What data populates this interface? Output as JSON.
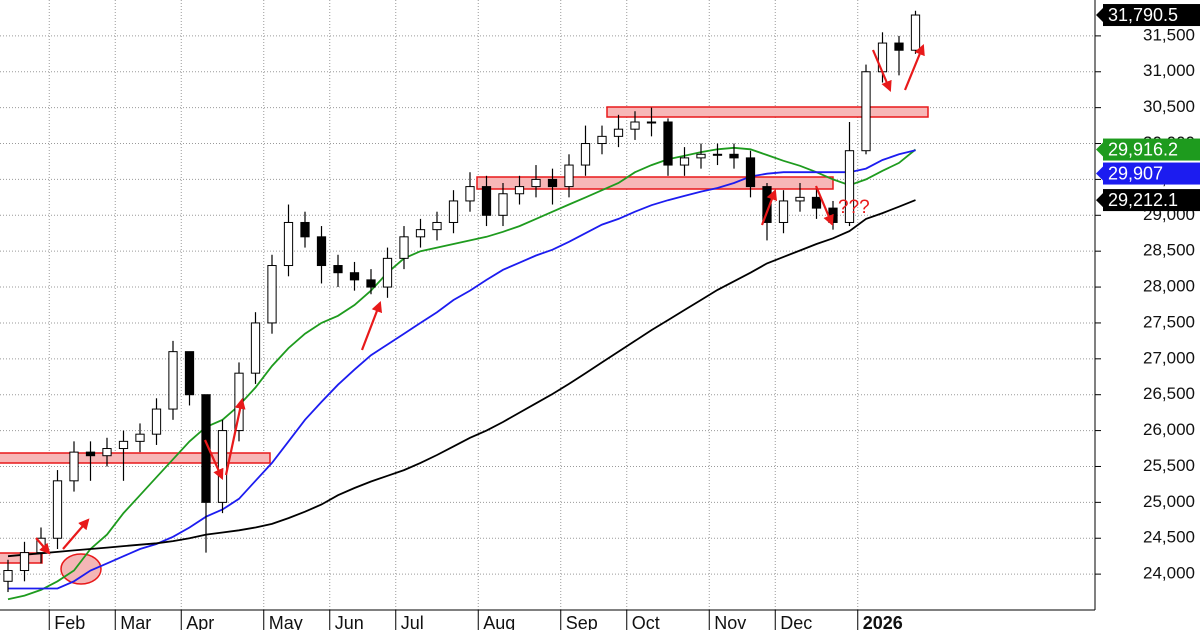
{
  "chart_data": {
    "type": "candlestick",
    "color": "#000000",
    "up_fill": "#ffffff",
    "grid": true,
    "categories": [
      null,
      null,
      null,
      "Feb",
      null,
      null,
      null,
      "Mar",
      null,
      null,
      null,
      "Apr",
      null,
      null,
      null,
      null,
      "May",
      null,
      null,
      null,
      "Jun",
      null,
      null,
      null,
      "Jul",
      null,
      null,
      null,
      null,
      "Aug",
      null,
      null,
      null,
      null,
      "Sep",
      null,
      null,
      null,
      "Oct",
      null,
      null,
      null,
      null,
      "Nov",
      null,
      null,
      null,
      "Dec",
      null,
      null,
      null,
      null,
      "2026",
      null,
      null,
      null
    ],
    "open": [
      23900,
      24050,
      24300,
      24500,
      25300,
      25700,
      25650,
      25750,
      25850,
      25950,
      26300,
      27100,
      26500,
      25000,
      26000,
      26800,
      27500,
      28300,
      28900,
      28700,
      28300,
      28200,
      28100,
      28000,
      28400,
      28700,
      28800,
      28900,
      29200,
      29400,
      29000,
      29300,
      29400,
      29500,
      29400,
      29700,
      30000,
      30100,
      30200,
      30300,
      30300,
      29700,
      29800,
      29850,
      29850,
      29800,
      29400,
      28900,
      29200,
      29250,
      29100,
      28900,
      29900,
      31000,
      31400,
      31300
    ],
    "high": [
      24200,
      24450,
      24650,
      25450,
      25850,
      25850,
      25900,
      26000,
      26100,
      26450,
      27250,
      27100,
      26500,
      26150,
      26950,
      27650,
      28450,
      29150,
      29050,
      28850,
      28450,
      28350,
      28250,
      28550,
      28850,
      28950,
      29050,
      29350,
      29600,
      29550,
      29450,
      29550,
      29700,
      29650,
      29850,
      30250,
      30250,
      30400,
      30450,
      30500,
      30350,
      29950,
      30000,
      30000,
      30000,
      29900,
      29450,
      29350,
      29450,
      29400,
      29200,
      30300,
      31100,
      31550,
      31500,
      31850
    ],
    "low": [
      23750,
      23900,
      24150,
      24350,
      25150,
      25300,
      25500,
      25300,
      25700,
      25800,
      26150,
      26350,
      24300,
      24850,
      25850,
      26650,
      27350,
      28150,
      28550,
      28050,
      28000,
      27950,
      27900,
      27850,
      28250,
      28550,
      28650,
      28750,
      29050,
      28850,
      28850,
      29150,
      29250,
      29150,
      29250,
      29550,
      29850,
      29950,
      30050,
      30100,
      29550,
      29550,
      29650,
      29700,
      29650,
      29250,
      28650,
      28750,
      29050,
      28950,
      28800,
      28850,
      29850,
      30850,
      30950,
      31250
    ],
    "values": [
      24050,
      24300,
      24500,
      25300,
      25700,
      25650,
      25750,
      25850,
      25950,
      26300,
      27100,
      26500,
      25000,
      26000,
      26800,
      27500,
      28300,
      28900,
      28700,
      28300,
      28200,
      28100,
      28000,
      28400,
      28700,
      28800,
      28900,
      29200,
      29400,
      29000,
      29300,
      29400,
      29500,
      29400,
      29700,
      30000,
      30100,
      30200,
      30300,
      30300,
      29700,
      29800,
      29850,
      29850,
      29800,
      29400,
      28900,
      29200,
      29250,
      29100,
      28900,
      29900,
      31000,
      31400,
      31300,
      31790.5
    ],
    "value_labels": [
      null,
      null,
      null,
      null,
      null,
      null,
      null,
      null,
      null,
      null,
      null,
      null,
      null,
      null,
      null,
      null,
      null,
      null,
      null,
      null,
      null,
      null,
      null,
      null,
      null,
      null,
      null,
      null,
      null,
      null,
      null,
      null,
      null,
      null,
      null,
      null,
      null,
      null,
      null,
      null,
      null,
      null,
      null,
      null,
      null,
      null,
      null,
      null,
      null,
      null,
      null,
      null,
      null,
      null,
      null,
      "31,790.5"
    ],
    "series": [
      {
        "color": "#1e9b1e",
        "values": [
          23650,
          23700,
          23780,
          23900,
          24050,
          24350,
          24550,
          24850,
          25100,
          25350,
          25600,
          25850,
          26050,
          26150,
          26350,
          26600,
          26900,
          27150,
          27350,
          27500,
          27600,
          27750,
          27950,
          28200,
          28400,
          28500,
          28550,
          28600,
          28650,
          28700,
          28770,
          28850,
          28950,
          29050,
          29150,
          29250,
          29350,
          29450,
          29600,
          29700,
          29780,
          29830,
          29880,
          29920,
          29940,
          29920,
          29840,
          29760,
          29690,
          29600,
          29500,
          29420,
          29500,
          29620,
          29730,
          29916.2
        ],
        "value_labels": [
          null,
          null,
          null,
          null,
          null,
          null,
          null,
          null,
          null,
          null,
          null,
          null,
          null,
          null,
          null,
          null,
          null,
          null,
          null,
          null,
          null,
          null,
          null,
          null,
          null,
          null,
          null,
          null,
          null,
          null,
          null,
          null,
          null,
          null,
          null,
          null,
          null,
          null,
          null,
          null,
          null,
          null,
          null,
          null,
          null,
          null,
          null,
          null,
          null,
          null,
          null,
          null,
          null,
          null,
          null,
          "29,916.2"
        ]
      },
      {
        "color": "#1c1cf0",
        "values": [
          23800,
          23800,
          23800,
          23800,
          23900,
          24050,
          24150,
          24250,
          24350,
          24420,
          24520,
          24650,
          24800,
          24900,
          25050,
          25300,
          25550,
          25850,
          26150,
          26400,
          26640,
          26850,
          27050,
          27200,
          27350,
          27500,
          27650,
          27820,
          27950,
          28100,
          28240,
          28340,
          28440,
          28520,
          28630,
          28750,
          28870,
          28950,
          29050,
          29140,
          29210,
          29270,
          29330,
          29380,
          29450,
          29540,
          29580,
          29600,
          29600,
          29600,
          29600,
          29600,
          29650,
          29770,
          29850,
          29907
        ],
        "value_labels": [
          null,
          null,
          null,
          null,
          null,
          null,
          null,
          null,
          null,
          null,
          null,
          null,
          null,
          null,
          null,
          null,
          null,
          null,
          null,
          null,
          null,
          null,
          null,
          null,
          null,
          null,
          null,
          null,
          null,
          null,
          null,
          null,
          null,
          null,
          null,
          null,
          null,
          null,
          null,
          null,
          null,
          null,
          null,
          null,
          null,
          null,
          null,
          null,
          null,
          null,
          null,
          null,
          null,
          null,
          null,
          "29,907"
        ]
      },
      {
        "color": "#000000",
        "values": [
          24250,
          24270,
          24290,
          24310,
          24330,
          24350,
          24370,
          24390,
          24410,
          24430,
          24460,
          24500,
          24550,
          24580,
          24610,
          24650,
          24700,
          24780,
          24870,
          24970,
          25100,
          25200,
          25290,
          25370,
          25450,
          25550,
          25660,
          25780,
          25900,
          26000,
          26120,
          26250,
          26380,
          26510,
          26650,
          26800,
          26950,
          27100,
          27250,
          27400,
          27540,
          27680,
          27820,
          27960,
          28080,
          28200,
          28330,
          28420,
          28510,
          28600,
          28680,
          28780,
          28950,
          29030,
          29120,
          29212.1
        ],
        "value_labels": [
          null,
          null,
          null,
          null,
          null,
          null,
          null,
          null,
          null,
          null,
          null,
          null,
          null,
          null,
          null,
          null,
          null,
          null,
          null,
          null,
          null,
          null,
          null,
          null,
          null,
          null,
          null,
          null,
          null,
          null,
          null,
          null,
          null,
          null,
          null,
          null,
          null,
          null,
          null,
          null,
          null,
          null,
          null,
          null,
          null,
          null,
          null,
          null,
          null,
          null,
          null,
          null,
          null,
          null,
          null,
          "29,212.1"
        ]
      }
    ],
    "ylim": [
      23500,
      32000
    ],
    "yticks": [
      {
        "value": 24000,
        "label": "24,000"
      },
      {
        "value": 24500,
        "label": "24,500"
      },
      {
        "value": 25000,
        "label": "25,000"
      },
      {
        "value": 25500,
        "label": "25,500"
      },
      {
        "value": 26000,
        "label": "26,000"
      },
      {
        "value": 26500,
        "label": "26,500"
      },
      {
        "value": 27000,
        "label": "27,000"
      },
      {
        "value": 27500,
        "label": "27,500"
      },
      {
        "value": 28000,
        "label": "28,000"
      },
      {
        "value": 28500,
        "label": "28,500"
      },
      {
        "value": 29000,
        "label": "29,000"
      },
      {
        "value": 29500,
        "label": "29,500"
      },
      {
        "value": 30000,
        "label": "30,000"
      },
      {
        "value": 30500,
        "label": "30,500"
      },
      {
        "value": 31000,
        "label": "31,000"
      },
      {
        "value": 31500,
        "label": "31,500"
      }
    ],
    "annotations": [
      "???"
    ]
  }
}
